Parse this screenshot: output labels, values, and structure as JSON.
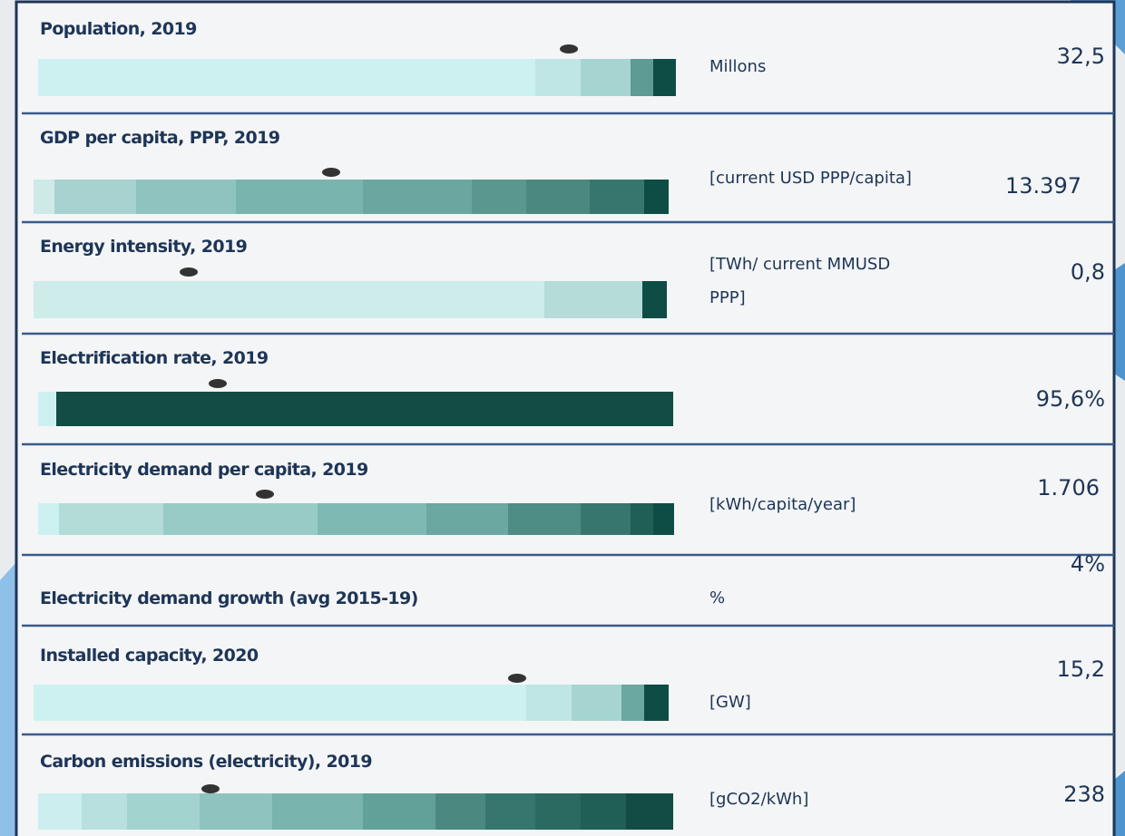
{
  "rows": [
    {
      "label": "Population, 2019",
      "unit": [
        "Millons"
      ],
      "value": "32,5"
    },
    {
      "label": "GDP per capita, PPP, 2019",
      "unit": [
        "[current USD PPP/capita]"
      ],
      "value": "13.397"
    },
    {
      "label": "Energy intensity, 2019",
      "unit": [
        "[TWh/ current MMUSD",
        "PPP]"
      ],
      "value": "0,8"
    },
    {
      "label": "Electrification rate, 2019",
      "value": "95,6%"
    },
    {
      "label": "Electricity demand per capita, 2019",
      "unit": [
        "[kWh/capita/year]"
      ],
      "value": "1.706"
    },
    {
      "label": "Electricity demand growth (avg 2015-19)",
      "unit": [
        "%"
      ],
      "value": "4%"
    },
    {
      "label": "Installed capacity, 2020",
      "unit": [
        "[GW]"
      ],
      "value": "15,2"
    },
    {
      "label": "Carbon emissions (electricity), 2019",
      "unit": [
        "[gCO2/kWh]"
      ],
      "value": "238"
    }
  ]
}
